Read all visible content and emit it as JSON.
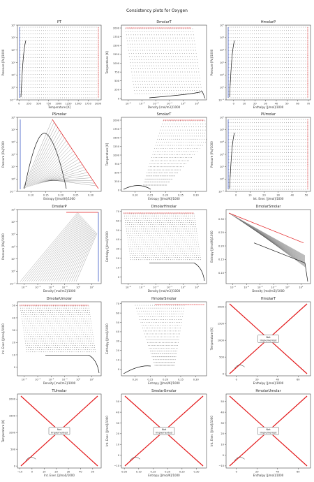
{
  "figure": {
    "title": "Consistency plots for Oxygen"
  },
  "not_implemented_label": [
    "Not",
    "Implemented"
  ],
  "colors": {
    "frame": "#444444",
    "point": "#222222",
    "red": "#e31a1c",
    "blue": "#1f3fbf"
  },
  "chart_data": [
    {
      "id": "PT",
      "type": "scatter",
      "title": "PT",
      "xlabel": "Temperature [K]",
      "ylabel": "Pressure [Pa]/1000",
      "x_log": false,
      "y_log": true,
      "xticks": [
        0,
        250,
        500,
        750,
        1000,
        1250,
        1500,
        1750,
        2000
      ],
      "xtick_labels": [
        "0",
        "250",
        "500",
        "750",
        "1000",
        "1250",
        "1500",
        "1750",
        "2000"
      ],
      "ytick_labels": [
        "10⁻¹",
        "10⁰",
        "10¹",
        "10²",
        "10³",
        "10⁴",
        "10⁵"
      ],
      "xlim": [
        -40,
        2080
      ],
      "ylim_exp": [
        -1,
        5
      ],
      "status": "ok"
    },
    {
      "id": "DmolarT",
      "type": "scatter",
      "title": "DmolarT",
      "xlabel": "Density [mol/m3]/1000",
      "ylabel": "Temperature [K]",
      "x_log": true,
      "y_log": false,
      "xtick_labels": [
        "10⁻⁴",
        "10⁻³",
        "10⁻²",
        "10⁻¹",
        "10⁰",
        "10¹"
      ],
      "xlim_exp": [
        -4.5,
        1.7
      ],
      "yticks": [
        0,
        250,
        500,
        750,
        1000,
        1250,
        1500,
        1750,
        2000
      ],
      "ytick_labels": [
        "0",
        "250",
        "500",
        "750",
        "1000",
        "1250",
        "1500",
        "1750",
        "2000"
      ],
      "ylim": [
        -40,
        2080
      ],
      "status": "ok"
    },
    {
      "id": "HmolarP",
      "type": "scatter",
      "title": "HmolarP",
      "xlabel": "Enthalpy [J/mol]/1000",
      "ylabel": "Pressure [Pa]/1000",
      "x_log": false,
      "y_log": true,
      "xticks": [
        0,
        10,
        20,
        30,
        40,
        50,
        60,
        70
      ],
      "xtick_labels": [
        "0",
        "10",
        "20",
        "30",
        "40",
        "50",
        "60",
        "70"
      ],
      "ytick_labels": [
        "10⁻¹",
        "10⁰",
        "10¹",
        "10²",
        "10³",
        "10⁴",
        "10⁵"
      ],
      "xlim": [
        -7,
        72
      ],
      "ylim_exp": [
        -1,
        5
      ],
      "status": "ok"
    },
    {
      "id": "PSmolar",
      "type": "scatter",
      "title": "PSmolar",
      "xlabel": "Entropy [J/mol/K]/1000",
      "ylabel": "Pressure [Pa]/1000",
      "x_log": false,
      "y_log": true,
      "xticks": [
        0.1,
        0.15,
        0.2,
        0.25,
        0.3
      ],
      "xtick_labels": [
        "0.10",
        "0.15",
        "0.20",
        "0.25",
        "0.30"
      ],
      "ytick_labels": [
        "10⁻¹",
        "10⁰",
        "10¹",
        "10²",
        "10³",
        "10⁴",
        "10⁵"
      ],
      "xlim": [
        0.055,
        0.335
      ],
      "ylim_exp": [
        -1,
        5
      ],
      "status": "ok"
    },
    {
      "id": "SmolarT",
      "type": "scatter",
      "title": "SmolarT",
      "xlabel": "Entropy [J/mol/K]/1000",
      "ylabel": "Temperature [K]",
      "x_log": false,
      "y_log": false,
      "xticks": [
        0.1,
        0.15,
        0.2,
        0.25,
        0.3
      ],
      "xtick_labels": [
        "0.10",
        "0.15",
        "0.20",
        "0.25",
        "0.30"
      ],
      "xlim": [
        0.055,
        0.335
      ],
      "yticks": [
        0,
        250,
        500,
        750,
        1000,
        1250,
        1500,
        1750,
        2000
      ],
      "ytick_labels": [
        "0",
        "250",
        "500",
        "750",
        "1000",
        "1250",
        "1500",
        "1750",
        "2000"
      ],
      "ylim": [
        -40,
        2080
      ],
      "status": "ok"
    },
    {
      "id": "PUmolar",
      "type": "scatter",
      "title": "PUmolar",
      "xlabel": "Int. Ener. [J/mol]/1000",
      "ylabel": "Pressure [Pa]/1000",
      "x_log": false,
      "y_log": true,
      "xticks": [
        0,
        10,
        20,
        30,
        40,
        50
      ],
      "xtick_labels": [
        "0",
        "10",
        "20",
        "30",
        "40",
        "50"
      ],
      "ytick_labels": [
        "10⁻¹",
        "10⁰",
        "10¹",
        "10²",
        "10³",
        "10⁴",
        "10⁵"
      ],
      "xlim": [
        -7,
        53
      ],
      "ylim_exp": [
        -1,
        5
      ],
      "status": "ok"
    },
    {
      "id": "DmolarP",
      "type": "scatter",
      "title": "DmolarP",
      "xlabel": "Density [mol/m3]/1000",
      "ylabel": "Pressure [Pa]/1000",
      "x_log": true,
      "y_log": true,
      "xtick_labels": [
        "10⁻⁴",
        "10⁻³",
        "10⁻²",
        "10⁻¹",
        "10⁰",
        "10¹"
      ],
      "xlim_exp": [
        -4.5,
        1.7
      ],
      "ytick_labels": [
        "10⁻¹",
        "10⁰",
        "10¹",
        "10²",
        "10³",
        "10⁴",
        "10⁵"
      ],
      "ylim_exp": [
        -1,
        5
      ],
      "status": "ok"
    },
    {
      "id": "DmolarHmolar",
      "type": "scatter",
      "title": "DmolarHmolar",
      "xlabel": "Density [mol/m3]/1000",
      "ylabel": "Enthalpy [J/mol]/1000",
      "x_log": true,
      "y_log": false,
      "xtick_labels": [
        "10⁻⁴",
        "10⁻³",
        "10⁻²",
        "10⁻¹",
        "10⁰",
        "10¹"
      ],
      "xlim_exp": [
        -4.5,
        1.7
      ],
      "yticks": [
        0,
        10,
        20,
        30,
        40,
        50,
        60,
        70
      ],
      "ytick_labels": [
        "0",
        "10",
        "20",
        "30",
        "40",
        "50",
        "60",
        "70"
      ],
      "ylim": [
        -7,
        72
      ],
      "status": "ok"
    },
    {
      "id": "DmolarSmolar",
      "type": "scatter",
      "title": "DmolarSmolar",
      "xlabel": "Density [mol/m3]/1000",
      "ylabel": "Entropy [J/mol/K]/1000",
      "x_log": true,
      "y_log": false,
      "xtick_labels": [
        "10⁻⁴",
        "10⁻³",
        "10⁻²",
        "10⁻¹",
        "10⁰",
        "10¹"
      ],
      "xlim_exp": [
        -4.5,
        1.7
      ],
      "yticks": [
        0.1,
        0.15,
        0.2,
        0.25,
        0.3
      ],
      "ytick_labels": [
        "0.10",
        "0.15",
        "0.20",
        "0.25",
        "0.30"
      ],
      "ylim": [
        0.06,
        0.335
      ],
      "status": "ok"
    },
    {
      "id": "DmolarUmolar",
      "type": "scatter",
      "title": "DmolarUmolar",
      "xlabel": "Density [mol/m3]/1000",
      "ylabel": "Int. Ener. [J/mol]/1000",
      "x_log": true,
      "y_log": false,
      "xtick_labels": [
        "10⁻⁴",
        "10⁻³",
        "10⁻²",
        "10⁻¹",
        "10⁰",
        "10¹"
      ],
      "xlim_exp": [
        -4.5,
        1.7
      ],
      "yticks": [
        0,
        10,
        20,
        30,
        40,
        50
      ],
      "ytick_labels": [
        "0",
        "10",
        "20",
        "30",
        "40",
        "50"
      ],
      "ylim": [
        -7,
        53
      ],
      "status": "ok"
    },
    {
      "id": "HmolarSmolar",
      "type": "scatter",
      "title": "HmolarSmolar",
      "xlabel": "Entropy [J/mol/K]/1000",
      "ylabel": "Enthalpy [J/mol]/1000",
      "x_log": false,
      "y_log": false,
      "xticks": [
        0.1,
        0.15,
        0.2,
        0.25,
        0.3
      ],
      "xtick_labels": [
        "0.10",
        "0.15",
        "0.20",
        "0.25",
        "0.30"
      ],
      "xlim": [
        0.055,
        0.335
      ],
      "yticks": [
        0,
        10,
        20,
        30,
        40,
        50,
        60,
        70
      ],
      "ytick_labels": [
        "0",
        "10",
        "20",
        "30",
        "40",
        "50",
        "60",
        "70"
      ],
      "ylim": [
        -7,
        72
      ],
      "status": "ok"
    },
    {
      "id": "HmolarT",
      "type": "line",
      "title": "HmolarT",
      "xlabel": "Enthalpy [J/mol]/1000",
      "ylabel": "Temperature [K]",
      "x_log": false,
      "y_log": false,
      "xticks": [
        0,
        20,
        40,
        60
      ],
      "xtick_labels": [
        "0",
        "20",
        "40",
        "60"
      ],
      "xlim": [
        -10,
        72
      ],
      "yticks": [
        0,
        500,
        1000,
        1500,
        2000
      ],
      "ytick_labels": [
        "0",
        "500",
        "1000",
        "1500",
        "2000"
      ],
      "ylim": [
        -60,
        2150
      ],
      "status": "not_implemented"
    },
    {
      "id": "TUmolar",
      "type": "line",
      "title": "TUmolar",
      "xlabel": "Int. Ener. [J/mol]/1000",
      "ylabel": "Temperature [K]",
      "x_log": false,
      "y_log": false,
      "xticks": [
        -10,
        0,
        10,
        20,
        30,
        40,
        50
      ],
      "xtick_labels": [
        "−10",
        "0",
        "10",
        "20",
        "30",
        "40",
        "50"
      ],
      "xlim": [
        -12,
        57
      ],
      "yticks": [
        0,
        500,
        1000,
        1500,
        2000
      ],
      "ytick_labels": [
        "0",
        "500",
        "1000",
        "1500",
        "2000"
      ],
      "ylim": [
        -60,
        2150
      ],
      "status": "not_implemented"
    },
    {
      "id": "SmolarUmolar",
      "type": "line",
      "title": "SmolarUmolar",
      "xlabel": "Entropy [J/mol/K]/1000",
      "ylabel": "Int. Ener. [J/mol]/1000",
      "x_log": false,
      "y_log": false,
      "xticks": [
        0.05,
        0.1,
        0.15,
        0.2,
        0.25,
        0.3
      ],
      "xtick_labels": [
        "0.05",
        "0.10",
        "0.15",
        "0.20",
        "0.25",
        "0.30"
      ],
      "xlim": [
        0.04,
        0.335
      ],
      "yticks": [
        -10,
        0,
        10,
        20,
        30,
        40,
        50
      ],
      "ytick_labels": [
        "−10",
        "0",
        "10",
        "20",
        "30",
        "40",
        "50"
      ],
      "ylim": [
        -12,
        57
      ],
      "status": "not_implemented"
    },
    {
      "id": "HmolarUmolar",
      "type": "line",
      "title": "HmolarUmolar",
      "xlabel": "Enthalpy [J/mol]/1000",
      "ylabel": "Int. Ener. [J/mol]/1000",
      "x_log": false,
      "y_log": false,
      "xticks": [
        0,
        20,
        40,
        60
      ],
      "xtick_labels": [
        "0",
        "20",
        "40",
        "60"
      ],
      "xlim": [
        -10,
        72
      ],
      "yticks": [
        -10,
        0,
        10,
        20,
        30,
        40,
        50
      ],
      "ytick_labels": [
        "−10",
        "0",
        "10",
        "20",
        "30",
        "40",
        "50"
      ],
      "ylim": [
        -12,
        57
      ],
      "status": "not_implemented"
    }
  ]
}
